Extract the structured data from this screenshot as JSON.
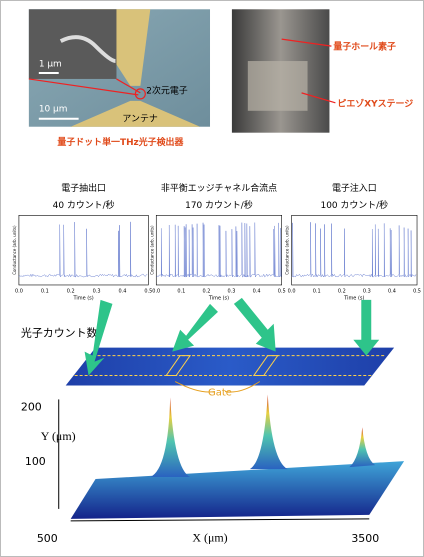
{
  "device_photo": {
    "scale_small": "1 μm",
    "label_2deg": "2次元電子",
    "scale_large": "10 μm",
    "label_antenna": "アンテナ",
    "caption": "量子ドット単一THz光子検出器"
  },
  "stage_photo": {
    "label_hall": "量子ホール素子",
    "label_piezo": "ピエゾXYステージ"
  },
  "panels": [
    {
      "title": "電子抽出口",
      "rate": "40 カウント/秒"
    },
    {
      "title": "非平衡エッジチャネル合流点",
      "rate": "170 カウント/秒"
    },
    {
      "title": "電子注入口",
      "rate": "100 カウント/秒"
    }
  ],
  "trace_axes": {
    "y_label": "Conductance (arb. units)",
    "x_label": "Time (s)",
    "xticks": [
      "0.0",
      "0.1",
      "0.2",
      "0.3",
      "0.4",
      "0.5"
    ]
  },
  "map": {
    "title": "光子カウント数",
    "gate": "Gate",
    "z_ticks": [
      "200",
      "100"
    ],
    "y_label": "Y (μm)",
    "x_label": "X (μm)",
    "x_start": "500",
    "x_end": "3500"
  }
}
